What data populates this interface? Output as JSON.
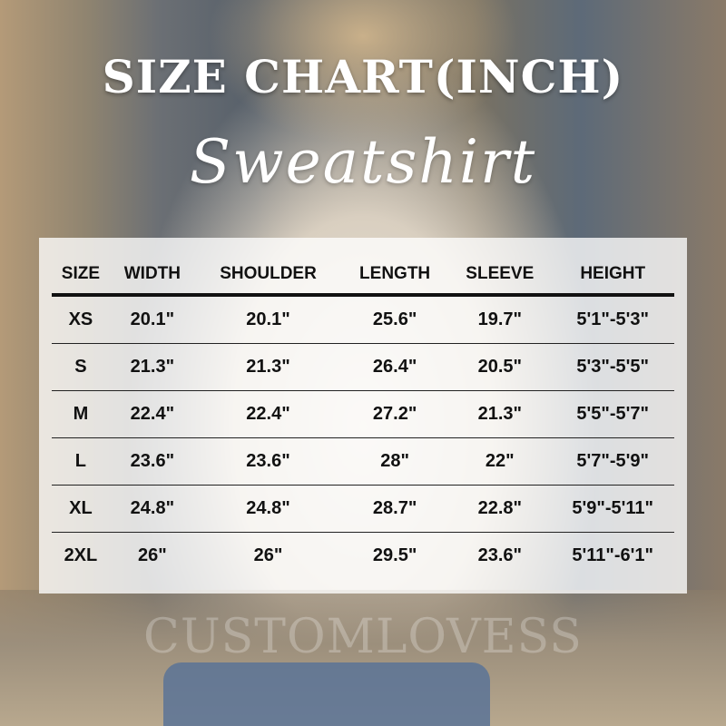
{
  "title": "SIZE CHART(INCH)",
  "subtitle": "Sweatshirt",
  "watermark": "CUSTOMLOVESS",
  "table": {
    "headers": [
      "SIZE",
      "WIDTH",
      "SHOULDER",
      "LENGTH",
      "SLEEVE",
      "HEIGHT"
    ],
    "rows": [
      [
        "XS",
        "20.1\"",
        "20.1\"",
        "25.6\"",
        "19.7\"",
        "5'1\"-5'3\""
      ],
      [
        "S",
        "21.3\"",
        "21.3\"",
        "26.4\"",
        "20.5\"",
        "5'3\"-5'5\""
      ],
      [
        "M",
        "22.4\"",
        "22.4\"",
        "27.2\"",
        "21.3\"",
        "5'5\"-5'7\""
      ],
      [
        "L",
        "23.6\"",
        "23.6\"",
        "28\"",
        "22\"",
        "5'7\"-5'9\""
      ],
      [
        "XL",
        "24.8\"",
        "24.8\"",
        "28.7\"",
        "22.8\"",
        "5'9\"-5'11\""
      ],
      [
        "2XL",
        "26\"",
        "26\"",
        "29.5\"",
        "23.6\"",
        "5'11\"-6'1\""
      ]
    ]
  }
}
